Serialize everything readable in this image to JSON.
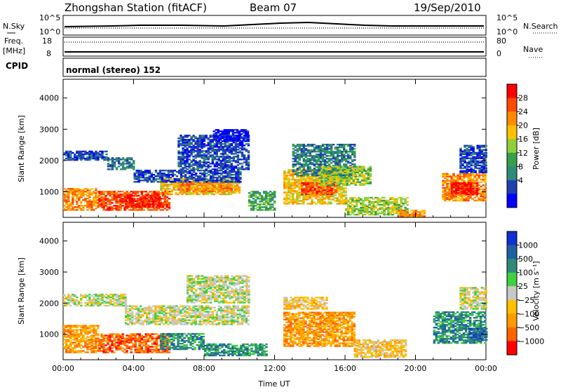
{
  "header": {
    "station": "Zhongshan Station (fitACF)",
    "beam": "Beam 07",
    "date": "19/Sep/2010"
  },
  "panels": {
    "nsky_label": "N.Sky",
    "nsky_ticks": [
      "10^5",
      "10^0"
    ],
    "nsearch_label": "N.Search",
    "nsearch_ticks": [
      "10^5",
      "10^0"
    ],
    "freq_label": "Freq.",
    "freq_unit": "[MHz]",
    "freq_ticks": [
      "18",
      "8"
    ],
    "nave_label": "Nave",
    "nave_ticks": [
      "80",
      "0"
    ],
    "cpid_label": "CPID",
    "cpid_text": "normal (stereo) 152"
  },
  "colors": {
    "power_scale": [
      "#0000ff",
      "#2040b0",
      "#2f8a7a",
      "#34a048",
      "#8fd03a",
      "#ffc000",
      "#ff8a00",
      "#ff4a00",
      "#ff0000"
    ],
    "velocity_scale": [
      "#ff0000",
      "#ff6400",
      "#ff9a00",
      "#ffc000",
      "#c8c8c8",
      "#40d040",
      "#2f8a7a",
      "#2060a0",
      "#1030d0"
    ]
  },
  "chart_data": [
    {
      "type": "heatmap",
      "quantity": "Power",
      "ylabel": "Slant Range [km]",
      "y_ticks": [
        1000,
        2000,
        3000,
        4000
      ],
      "ylim": [
        180,
        4600
      ],
      "x_tick_labels": [
        "00:00",
        "04:00",
        "08:00",
        "12:00",
        "16:00",
        "20:00",
        "00:00"
      ],
      "xlim_hours": [
        0,
        24
      ],
      "colorbar_label": "Power [dB]",
      "colorbar_ticks": [
        "28",
        "24",
        "20",
        "16",
        "12",
        "8",
        "4"
      ],
      "regions": [
        {
          "t0": 0.0,
          "t1": 2.0,
          "r0": 400,
          "r1": 1100,
          "level": 6
        },
        {
          "t0": 2.0,
          "t1": 6.0,
          "r0": 400,
          "r1": 1000,
          "level": 7
        },
        {
          "t0": 3.5,
          "t1": 5.5,
          "r0": 500,
          "r1": 900,
          "level": 8
        },
        {
          "t0": 5.5,
          "t1": 10.0,
          "r0": 900,
          "r1": 1400,
          "level": 5
        },
        {
          "t0": 6.5,
          "t1": 9.5,
          "r0": 1000,
          "r1": 1300,
          "level": 6
        },
        {
          "t0": 0.0,
          "t1": 2.5,
          "r0": 2000,
          "r1": 2300,
          "level": 1
        },
        {
          "t0": 2.5,
          "t1": 4.0,
          "r0": 1700,
          "r1": 2100,
          "level": 2
        },
        {
          "t0": 4.0,
          "t1": 10.0,
          "r0": 1300,
          "r1": 1700,
          "level": 1
        },
        {
          "t0": 6.5,
          "t1": 10.5,
          "r0": 1700,
          "r1": 2800,
          "level": 1
        },
        {
          "t0": 8.5,
          "t1": 10.5,
          "r0": 2600,
          "r1": 3000,
          "level": 0
        },
        {
          "t0": 10.5,
          "t1": 12.0,
          "r0": 400,
          "r1": 1000,
          "level": 3
        },
        {
          "t0": 12.5,
          "t1": 16.0,
          "r0": 600,
          "r1": 1700,
          "level": 5
        },
        {
          "t0": 13.5,
          "t1": 15.5,
          "r0": 900,
          "r1": 1300,
          "level": 7
        },
        {
          "t0": 13.0,
          "t1": 16.5,
          "r0": 1500,
          "r1": 2500,
          "level": 2
        },
        {
          "t0": 14.5,
          "t1": 17.5,
          "r0": 1200,
          "r1": 1800,
          "level": 4
        },
        {
          "t0": 16.0,
          "t1": 19.5,
          "r0": 250,
          "r1": 800,
          "level": 4
        },
        {
          "t0": 19.0,
          "t1": 20.5,
          "r0": 200,
          "r1": 400,
          "level": 6
        },
        {
          "t0": 21.5,
          "t1": 24.0,
          "r0": 700,
          "r1": 1600,
          "level": 6
        },
        {
          "t0": 22.0,
          "t1": 23.5,
          "r0": 900,
          "r1": 1300,
          "level": 8
        },
        {
          "t0": 22.5,
          "t1": 24.0,
          "r0": 1600,
          "r1": 2500,
          "level": 1
        }
      ]
    },
    {
      "type": "heatmap",
      "quantity": "Velocity",
      "ylabel": "Slant Range [km]",
      "y_ticks": [
        1000,
        2000,
        3000,
        4000
      ],
      "ylim": [
        180,
        4600
      ],
      "x_tick_labels": [
        "00:00",
        "04:00",
        "08:00",
        "12:00",
        "16:00",
        "20:00",
        "00:00"
      ],
      "xlim_hours": [
        0,
        24
      ],
      "xlabel": "Time UT",
      "colorbar_label": "Velocity [m s⁻¹]",
      "colorbar_ticks": [
        "1000",
        "500",
        "100",
        "25",
        "−25",
        "−100",
        "−500",
        "−1000"
      ],
      "regions": [
        {
          "t0": 0.0,
          "t1": 3.5,
          "r0": 1900,
          "r1": 2300,
          "level": 4
        },
        {
          "t0": 3.5,
          "t1": 10.5,
          "r0": 1300,
          "r1": 1900,
          "level": 4
        },
        {
          "t0": 7.0,
          "t1": 10.5,
          "r0": 2000,
          "r1": 2900,
          "level": 4
        },
        {
          "t0": 0.0,
          "t1": 2.0,
          "r0": 400,
          "r1": 1300,
          "level": 2
        },
        {
          "t0": 2.0,
          "t1": 6.0,
          "r0": 400,
          "r1": 1000,
          "level": 1
        },
        {
          "t0": 5.5,
          "t1": 8.0,
          "r0": 500,
          "r1": 1000,
          "level": 6
        },
        {
          "t0": 8.0,
          "t1": 11.5,
          "r0": 300,
          "r1": 700,
          "level": 6
        },
        {
          "t0": 12.5,
          "t1": 16.5,
          "r0": 600,
          "r1": 1700,
          "level": 2
        },
        {
          "t0": 12.5,
          "t1": 15.0,
          "r0": 1800,
          "r1": 2200,
          "level": 3
        },
        {
          "t0": 16.5,
          "t1": 19.5,
          "r0": 250,
          "r1": 800,
          "level": 3
        },
        {
          "t0": 21.0,
          "t1": 24.0,
          "r0": 700,
          "r1": 1700,
          "level": 6
        },
        {
          "t0": 23.0,
          "t1": 24.0,
          "r0": 800,
          "r1": 1200,
          "level": 7
        },
        {
          "t0": 22.5,
          "t1": 24.0,
          "r0": 1800,
          "r1": 2500,
          "level": 4
        }
      ]
    }
  ]
}
